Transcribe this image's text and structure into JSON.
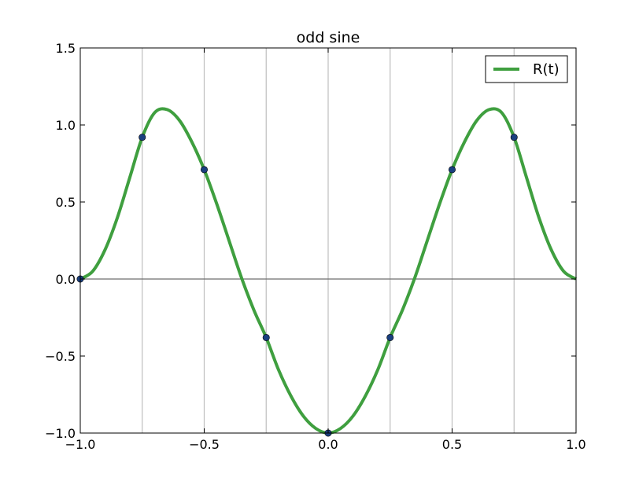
{
  "chart_data": {
    "type": "line",
    "title": "odd sine",
    "xlabel": "",
    "ylabel": "",
    "xlim": [
      -1.0,
      1.0
    ],
    "ylim": [
      -1.0,
      1.5
    ],
    "x_ticks": [
      -1.0,
      -0.5,
      0.0,
      0.5,
      1.0
    ],
    "x_tick_labels": [
      "−1.0",
      "−0.5",
      "0.0",
      "0.5",
      "1.0"
    ],
    "y_ticks": [
      -1.0,
      -0.5,
      0.0,
      0.5,
      1.0,
      1.5
    ],
    "y_tick_labels": [
      "−1.0",
      "−0.5",
      "0.0",
      "0.5",
      "1.0",
      "1.5"
    ],
    "vertical_gridlines_x": [
      -0.75,
      -0.5,
      -0.25,
      0.0,
      0.25,
      0.5,
      0.75
    ],
    "horizontal_reference_y": 0.0,
    "legend_placement": "top-right",
    "series": [
      {
        "name": "R(t)",
        "color": "#3f9f3f",
        "style": "line",
        "x": [
          -1.0,
          -0.95,
          -0.9,
          -0.85,
          -0.8,
          -0.75,
          -0.7,
          -0.65,
          -0.6,
          -0.55,
          -0.5,
          -0.45,
          -0.4,
          -0.35,
          -0.3,
          -0.25,
          -0.2,
          -0.15,
          -0.1,
          -0.05,
          0.0,
          0.05,
          0.1,
          0.15,
          0.2,
          0.25,
          0.3,
          0.35,
          0.4,
          0.45,
          0.5,
          0.55,
          0.6,
          0.65,
          0.7,
          0.75,
          0.8,
          0.85,
          0.9,
          0.95,
          1.0
        ],
        "y": [
          0.0,
          0.05,
          0.19,
          0.4,
          0.66,
          0.92,
          1.08,
          1.1,
          1.03,
          0.89,
          0.71,
          0.49,
          0.25,
          0.01,
          -0.2,
          -0.38,
          -0.59,
          -0.76,
          -0.89,
          -0.97,
          -1.0,
          -0.97,
          -0.89,
          -0.76,
          -0.59,
          -0.38,
          -0.2,
          0.01,
          0.25,
          0.49,
          0.71,
          0.89,
          1.03,
          1.1,
          1.08,
          0.92,
          0.66,
          0.4,
          0.19,
          0.05,
          0.0
        ]
      },
      {
        "name": "",
        "color": "#1a3f7f",
        "style": "markers",
        "x": [
          -1.0,
          -0.75,
          -0.5,
          -0.25,
          0.0,
          0.25,
          0.5,
          0.75
        ],
        "y": [
          0.0,
          0.92,
          0.71,
          -0.38,
          -1.0,
          -0.38,
          0.71,
          0.92
        ]
      }
    ]
  }
}
